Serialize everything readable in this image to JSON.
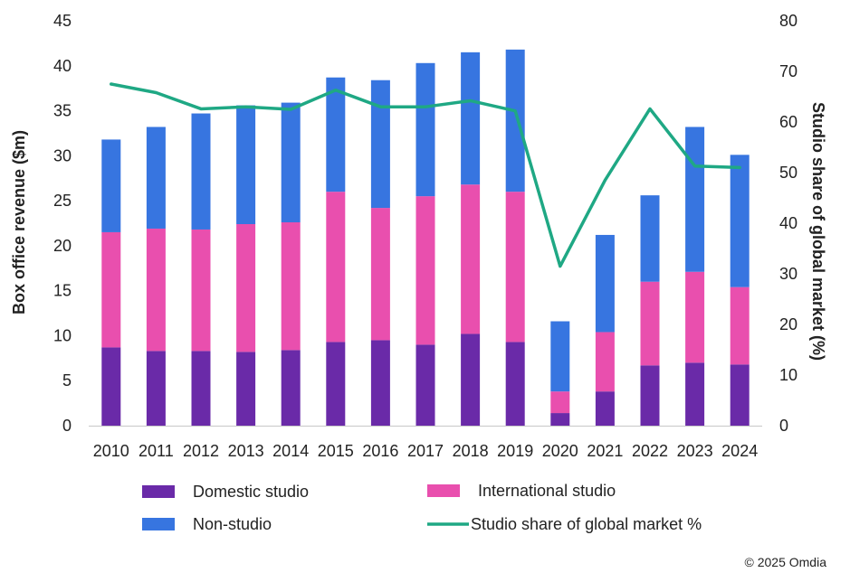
{
  "chart_data": {
    "type": "bar",
    "stacked": true,
    "categories": [
      "2010",
      "2011",
      "2012",
      "2013",
      "2014",
      "2015",
      "2016",
      "2017",
      "2018",
      "2019",
      "2020",
      "2021",
      "2022",
      "2023",
      "2024"
    ],
    "series": [
      {
        "name": "Domestic studio",
        "color": "#6a2aa8",
        "values": [
          8.7,
          8.3,
          8.3,
          8.2,
          8.4,
          9.3,
          9.5,
          9.0,
          10.2,
          9.3,
          1.4,
          3.8,
          6.7,
          7.0,
          6.8
        ]
      },
      {
        "name": "International studio",
        "color": "#e94fae",
        "values": [
          12.8,
          13.6,
          13.5,
          14.2,
          14.2,
          16.7,
          14.7,
          16.5,
          16.6,
          16.7,
          2.4,
          6.6,
          9.3,
          10.1,
          8.6
        ]
      },
      {
        "name": "Non-studio",
        "color": "#3775e0",
        "values": [
          10.3,
          11.3,
          12.9,
          13.2,
          13.3,
          12.7,
          14.2,
          14.8,
          14.7,
          15.8,
          7.8,
          10.8,
          9.6,
          16.1,
          14.7
        ]
      }
    ],
    "line_series": {
      "name": "Studio share of global market %",
      "color": "#1fa884",
      "axis": "right",
      "values": [
        67.5,
        65.8,
        62.6,
        63.0,
        62.5,
        66.3,
        63.0,
        63.0,
        64.2,
        62.2,
        31.5,
        48.5,
        62.6,
        51.3,
        51.0
      ]
    },
    "ylabel": "Box office revenue ($m)",
    "y2label": "Studio share of global market (%)",
    "ylim": [
      0,
      45
    ],
    "y2lim": [
      0,
      80
    ],
    "yticks": [
      "0",
      "5",
      "10",
      "15",
      "20",
      "25",
      "30",
      "35",
      "40",
      "45"
    ],
    "y2ticks": [
      "0",
      "10",
      "20",
      "30",
      "40",
      "50",
      "60",
      "70",
      "80"
    ],
    "legend": {
      "items": [
        {
          "label": "Domestic studio",
          "color": "#6a2aa8",
          "kind": "box"
        },
        {
          "label": "International studio",
          "color": "#e94fae",
          "kind": "box"
        },
        {
          "label": "Non-studio",
          "color": "#3775e0",
          "kind": "box"
        },
        {
          "label": "Studio share of global market %",
          "color": "#1fa884",
          "kind": "line"
        }
      ]
    }
  },
  "credit": "© 2025 Omdia"
}
